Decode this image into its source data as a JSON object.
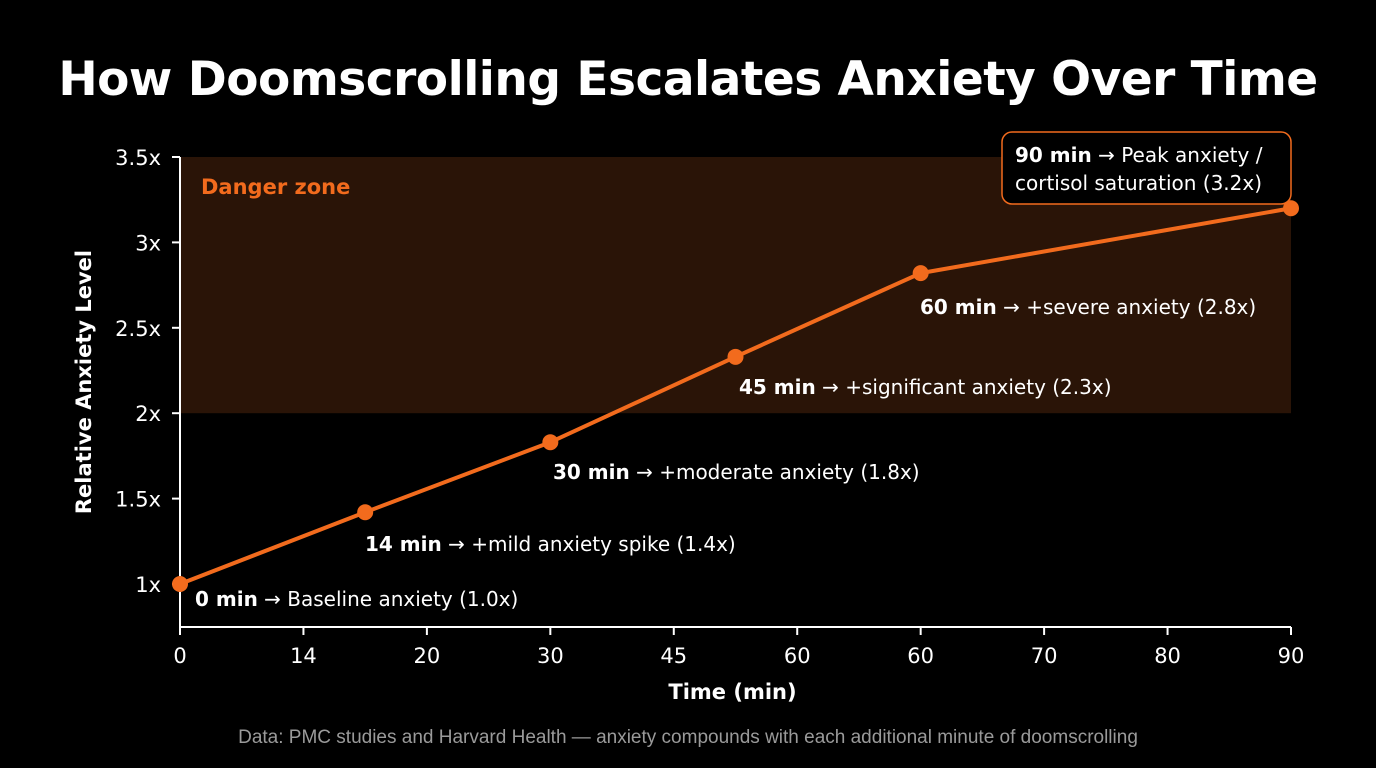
{
  "title": "How Doomscrolling Escalates Anxiety Over Time",
  "footnote": "Data: PMC studies and Harvard Health — anxiety compounds with each additional minute of doomscrolling",
  "colors": {
    "background": "#000000",
    "accent": "#f26b1d",
    "zone_fill": "#2a1407",
    "text": "#ffffff",
    "muted": "#9a9a9a"
  },
  "chart_data": {
    "type": "line",
    "title": "How Doomscrolling Escalates Anxiety Over Time",
    "xlabel": "Time (min)",
    "ylabel": "Relative Anxiety Level",
    "x_tick_labels": [
      "0",
      "14",
      "20",
      "30",
      "45",
      "60",
      "60",
      "70",
      "80",
      "90"
    ],
    "y_ticks": [
      1,
      1.5,
      2,
      2.5,
      3,
      3.5
    ],
    "y_tick_labels": [
      "1x",
      "1.5x",
      "2x",
      "2.5x",
      "3x",
      "3.5x"
    ],
    "ylim": [
      1,
      3.5
    ],
    "grid": false,
    "danger_zone": {
      "label": "Danger zone",
      "y_from": 2,
      "y_to": 3.5
    },
    "points": [
      {
        "x_pos": 0,
        "y": 1.0,
        "time": "0 min",
        "desc": " → Baseline anxiety (1.0x)"
      },
      {
        "x_pos": 1.5,
        "y": 1.42,
        "time": "14 min",
        "desc": " → +mild anxiety spike (1.4x)"
      },
      {
        "x_pos": 3,
        "y": 1.83,
        "time": "30 min",
        "desc": " → +moderate anxiety (1.8x)"
      },
      {
        "x_pos": 4.5,
        "y": 2.33,
        "time": "45 min",
        "desc": " → +significant anxiety (2.3x)"
      },
      {
        "x_pos": 6,
        "y": 2.82,
        "time": "60 min",
        "desc": " → +severe anxiety (2.8x)"
      },
      {
        "x_pos": 9,
        "y": 3.2,
        "time": "90 min",
        "desc": " → Peak anxiety /",
        "desc2": "cortisol saturation (3.2x)"
      }
    ]
  }
}
